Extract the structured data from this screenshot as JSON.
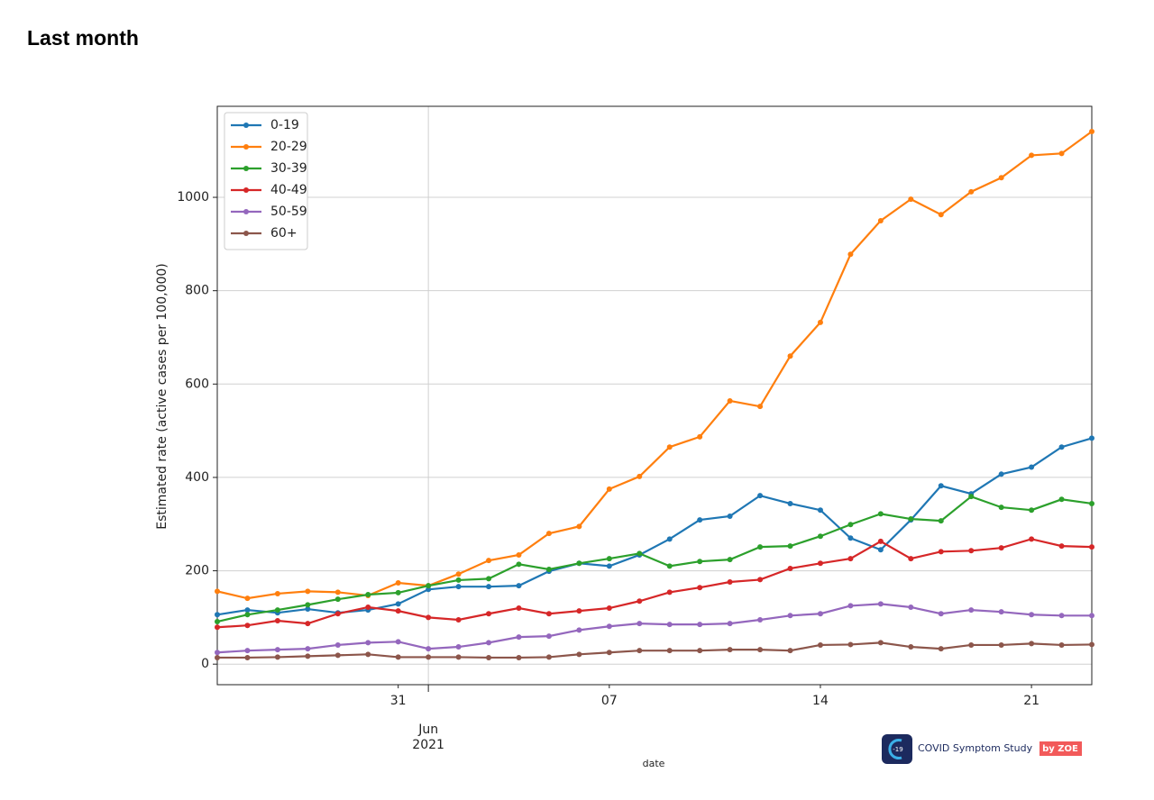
{
  "header": {
    "title": "Last month"
  },
  "chart_data": {
    "type": "line",
    "ylabel": "Estimated rate (active cases per 100,000)",
    "xlabel": "date",
    "x": [
      "2021-05-25",
      "2021-05-26",
      "2021-05-27",
      "2021-05-28",
      "2021-05-29",
      "2021-05-30",
      "2021-05-31",
      "2021-06-01",
      "2021-06-02",
      "2021-06-03",
      "2021-06-04",
      "2021-06-05",
      "2021-06-06",
      "2021-06-07",
      "2021-06-08",
      "2021-06-09",
      "2021-06-10",
      "2021-06-11",
      "2021-06-12",
      "2021-06-13",
      "2021-06-14",
      "2021-06-15",
      "2021-06-16",
      "2021-06-17",
      "2021-06-18",
      "2021-06-19",
      "2021-06-20",
      "2021-06-21",
      "2021-06-22",
      "2021-06-23"
    ],
    "series": [
      {
        "name": "0-19",
        "color": "#1f77b4",
        "values": [
          106,
          116,
          110,
          118,
          110,
          116,
          129,
          160,
          166,
          166,
          168,
          199,
          216,
          210,
          234,
          268,
          309,
          317,
          361,
          344,
          330,
          270,
          245,
          309,
          382,
          365,
          407,
          422,
          465,
          484
        ]
      },
      {
        "name": "20-29",
        "color": "#ff7f0e",
        "values": [
          156,
          141,
          151,
          156,
          154,
          147,
          174,
          168,
          193,
          222,
          234,
          280,
          295,
          375,
          402,
          465,
          487,
          564,
          552,
          660,
          732,
          878,
          950,
          996,
          963,
          1012,
          1042,
          1090,
          1094,
          1141
        ]
      },
      {
        "name": "30-39",
        "color": "#2ca02c",
        "values": [
          91,
          106,
          116,
          127,
          139,
          149,
          153,
          168,
          180,
          183,
          214,
          203,
          216,
          226,
          237,
          210,
          220,
          224,
          251,
          253,
          274,
          299,
          322,
          311,
          307,
          359,
          336,
          330,
          353,
          344
        ]
      },
      {
        "name": "40-49",
        "color": "#d62728",
        "values": [
          79,
          83,
          93,
          87,
          108,
          122,
          114,
          100,
          95,
          108,
          120,
          108,
          114,
          120,
          135,
          154,
          164,
          176,
          181,
          205,
          216,
          226,
          263,
          226,
          241,
          243,
          249,
          268,
          253,
          251
        ]
      },
      {
        "name": "50-59",
        "color": "#9467bd",
        "values": [
          25,
          29,
          31,
          33,
          41,
          46,
          48,
          33,
          37,
          46,
          58,
          60,
          73,
          81,
          87,
          85,
          85,
          87,
          95,
          104,
          108,
          125,
          129,
          122,
          108,
          116,
          112,
          106,
          104,
          104
        ]
      },
      {
        "name": "60+",
        "color": "#8c564b",
        "values": [
          14,
          14,
          15,
          17,
          19,
          21,
          15,
          15,
          15,
          14,
          14,
          15,
          21,
          25,
          29,
          29,
          29,
          31,
          31,
          29,
          41,
          42,
          46,
          37,
          33,
          41,
          41,
          44,
          41,
          42
        ]
      }
    ],
    "xlim": [
      "2021-05-25",
      "2021-06-23"
    ],
    "xticks": [
      {
        "value": "2021-05-31",
        "label": "31"
      },
      {
        "value": "2021-06-07",
        "label": "07"
      },
      {
        "value": "2021-06-14",
        "label": "14"
      },
      {
        "value": "2021-06-21",
        "label": "21"
      }
    ],
    "xticks_major": [
      {
        "value": "2021-06-01",
        "label": "Jun\n2021"
      }
    ],
    "ylim": [
      -44,
      1195
    ],
    "yticks": [
      0,
      200,
      400,
      600,
      800,
      1000
    ],
    "grid": true,
    "legend": "upper left"
  },
  "logo": {
    "icon": "-19",
    "text": "COVID Symptom Study",
    "badge": "by ZOE"
  }
}
